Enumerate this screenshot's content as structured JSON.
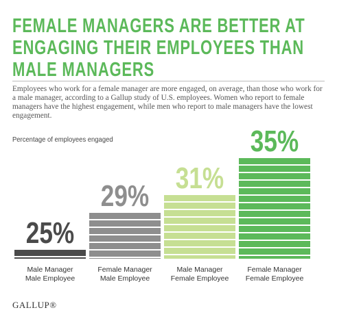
{
  "chart_data": {
    "type": "bar",
    "title": "FEMALE MANAGERS ARE BETTER AT ENGAGING THEIR EMPLOYEES THAN MALE MANAGERS",
    "subtitle": "Employees who work for a female manager are more engaged, on average, than those who work for a male manager, according to a Gallup study of U.S. employees. Women who report to female managers have the highest engagement, while men who report to male managers have the lowest engagement.",
    "y_label": "Percentage of employees engaged",
    "categories": [
      "Male Manager\nMale Employee",
      "Female Manager\nMale Employee",
      "Male Manager\nFemale Employee",
      "Female Manager\nFemale Employee"
    ],
    "values": [
      25,
      29,
      31,
      35
    ],
    "value_labels": [
      "25%",
      "29%",
      "31%",
      "35%"
    ],
    "colors": [
      "#4a4a4a",
      "#8e8e8e",
      "#c6df93",
      "#5cb95a"
    ],
    "ylim": [
      24,
      36
    ],
    "source": "GALLUP®"
  }
}
